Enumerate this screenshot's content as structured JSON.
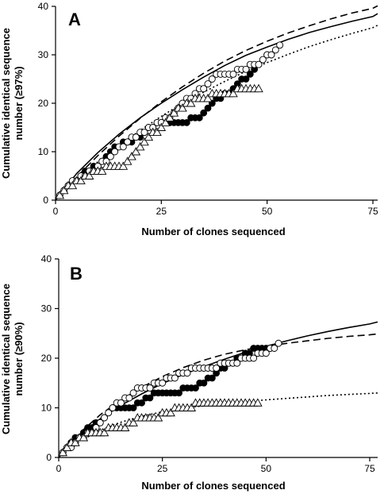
{
  "chart_data": [
    {
      "type": "scatter",
      "panel_label": "A",
      "xlabel": "Number of clones sequenced",
      "ylabel": [
        "Cumulative identical sequence",
        "number (≥97%)"
      ],
      "xlim": [
        0,
        75
      ],
      "ylim": [
        0,
        40
      ],
      "xticks": [
        "0",
        "25",
        "50",
        "75"
      ],
      "yticks": [
        "0",
        "10",
        "20",
        "30",
        "40"
      ],
      "grid": false,
      "legend": "none",
      "series": [
        {
          "marker": "filled-circle",
          "x": [
            1,
            2,
            3,
            4,
            5,
            6,
            7,
            8,
            9,
            10,
            11,
            12,
            13,
            14,
            15,
            16,
            17,
            18,
            19,
            20,
            21,
            22,
            23,
            24,
            25,
            26,
            27,
            28,
            29,
            30,
            31,
            32,
            33,
            34,
            35,
            36,
            37,
            38,
            39,
            40,
            41,
            42,
            43,
            44,
            45,
            46,
            47,
            48,
            49,
            50,
            51
          ],
          "y": [
            1,
            2,
            3,
            4,
            4,
            5,
            6,
            6,
            7,
            7,
            8,
            9,
            10,
            11,
            11,
            12,
            12,
            12,
            13,
            13,
            14,
            15,
            15,
            16,
            16,
            16,
            16,
            16,
            16,
            16,
            16,
            17,
            17,
            17,
            18,
            19,
            20,
            21,
            21,
            22,
            22,
            23,
            24,
            25,
            25,
            26,
            27,
            28,
            29,
            30,
            30
          ]
        },
        {
          "marker": "open-circle",
          "x": [
            1,
            2,
            3,
            4,
            5,
            6,
            7,
            8,
            9,
            10,
            11,
            12,
            13,
            14,
            15,
            16,
            17,
            18,
            19,
            20,
            21,
            22,
            23,
            24,
            25,
            26,
            27,
            28,
            29,
            30,
            31,
            32,
            33,
            34,
            35,
            36,
            37,
            38,
            39,
            40,
            41,
            42,
            43,
            44,
            45,
            46,
            47,
            48,
            49,
            50,
            51,
            52,
            53
          ],
          "y": [
            1,
            2,
            3,
            4,
            4,
            5,
            5,
            6,
            6,
            7,
            8,
            8,
            9,
            10,
            11,
            11,
            12,
            13,
            13,
            14,
            14,
            15,
            15,
            16,
            16,
            17,
            17,
            18,
            19,
            20,
            21,
            21,
            22,
            23,
            23,
            24,
            25,
            26,
            26,
            26,
            26,
            26,
            27,
            27,
            27,
            28,
            28,
            28,
            29,
            30,
            30,
            31,
            32
          ]
        },
        {
          "marker": "open-triangle",
          "x": [
            1,
            2,
            3,
            4,
            5,
            6,
            7,
            8,
            9,
            10,
            11,
            12,
            13,
            14,
            15,
            16,
            17,
            18,
            19,
            20,
            21,
            22,
            23,
            24,
            25,
            26,
            27,
            28,
            29,
            30,
            31,
            32,
            33,
            34,
            35,
            36,
            37,
            38,
            39,
            40,
            41,
            42,
            43,
            44,
            45,
            46,
            47,
            48
          ],
          "y": [
            1,
            2,
            3,
            3,
            4,
            4,
            5,
            5,
            6,
            6,
            6,
            7,
            7,
            7,
            7,
            7,
            8,
            9,
            10,
            11,
            12,
            13,
            14,
            14,
            15,
            16,
            17,
            18,
            19,
            19,
            20,
            20,
            21,
            21,
            21,
            21,
            22,
            22,
            22,
            22,
            22,
            22,
            23,
            23,
            23,
            23,
            23,
            23
          ]
        }
      ],
      "fit_curves": [
        {
          "style": "solid",
          "x": [
            0,
            5,
            10,
            15,
            20,
            25,
            30,
            35,
            40,
            45,
            50,
            55,
            60,
            65,
            70,
            75,
            78
          ],
          "y": [
            0,
            5.5,
            9.8,
            13.6,
            17,
            20,
            22.8,
            25.4,
            27.8,
            29.9,
            31.6,
            33.2,
            34.6,
            35.8,
            36.9,
            37.9,
            38.5
          ]
        },
        {
          "style": "dashed",
          "x": [
            0,
            5,
            10,
            15,
            20,
            25,
            30,
            35,
            40,
            45,
            50,
            55,
            60,
            65,
            70,
            75,
            78
          ],
          "y": [
            0,
            4.8,
            9.2,
            13.2,
            16.9,
            20.3,
            23.4,
            26.2,
            28.7,
            30.9,
            32.8,
            34.5,
            36,
            37.4,
            38.6,
            39.6,
            40.1
          ]
        },
        {
          "style": "dotted",
          "x": [
            0,
            5,
            10,
            15,
            20,
            25,
            30,
            35,
            40,
            45,
            50,
            55,
            60,
            65,
            70,
            75,
            78
          ],
          "y": [
            0,
            4.2,
            7.9,
            11.3,
            14.4,
            17.3,
            20,
            22.3,
            24.5,
            26.6,
            28.4,
            30.1,
            31.7,
            33.1,
            34.4,
            35.6,
            36.1
          ]
        }
      ]
    },
    {
      "type": "scatter",
      "panel_label": "B",
      "xlabel": "Number of clones sequenced",
      "ylabel": [
        "Cumulative identical sequence",
        "number (≥90%)"
      ],
      "xlim": [
        0,
        75
      ],
      "ylim": [
        0,
        40
      ],
      "xticks": [
        "0",
        "25",
        "50",
        "75"
      ],
      "yticks": [
        "0",
        "10",
        "20",
        "30",
        "40"
      ],
      "grid": false,
      "legend": "none",
      "series": [
        {
          "marker": "filled-circle",
          "x": [
            1,
            2,
            3,
            4,
            5,
            6,
            7,
            8,
            9,
            10,
            11,
            12,
            13,
            14,
            15,
            16,
            17,
            18,
            19,
            20,
            21,
            22,
            23,
            24,
            25,
            26,
            27,
            28,
            29,
            30,
            31,
            32,
            33,
            34,
            35,
            36,
            37,
            38,
            39,
            40,
            41,
            42,
            43,
            44,
            45,
            46,
            47,
            48,
            49,
            50,
            51
          ],
          "y": [
            1,
            2,
            3,
            4,
            4,
            5,
            6,
            6,
            7,
            7,
            8,
            9,
            10,
            10,
            10,
            10,
            10,
            10,
            11,
            11,
            12,
            12,
            13,
            13,
            13,
            13,
            13,
            13,
            13,
            14,
            14,
            14,
            14,
            15,
            15,
            16,
            16,
            17,
            18,
            18,
            19,
            19,
            20,
            20,
            21,
            21,
            22,
            22,
            22,
            22,
            22
          ]
        },
        {
          "marker": "open-circle",
          "x": [
            1,
            2,
            3,
            4,
            5,
            6,
            7,
            8,
            9,
            10,
            11,
            12,
            13,
            14,
            15,
            16,
            17,
            18,
            19,
            20,
            21,
            22,
            23,
            24,
            25,
            26,
            27,
            28,
            29,
            30,
            31,
            32,
            33,
            34,
            35,
            36,
            37,
            38,
            39,
            40,
            41,
            42,
            43,
            44,
            45,
            46,
            47,
            48,
            49,
            50,
            51,
            52,
            53
          ],
          "y": [
            1,
            2,
            2,
            3,
            4,
            4,
            5,
            5,
            6,
            7,
            8,
            9,
            10,
            11,
            11,
            12,
            12,
            13,
            14,
            14,
            14,
            14,
            15,
            15,
            15,
            16,
            16,
            16,
            17,
            17,
            17,
            18,
            18,
            18,
            18,
            18,
            18,
            18,
            19,
            19,
            19,
            19,
            19,
            20,
            20,
            20,
            20,
            21,
            21,
            21,
            22,
            22,
            23
          ]
        },
        {
          "marker": "open-triangle",
          "x": [
            1,
            2,
            3,
            4,
            5,
            6,
            7,
            8,
            9,
            10,
            11,
            12,
            13,
            14,
            15,
            16,
            17,
            18,
            19,
            20,
            21,
            22,
            23,
            24,
            25,
            26,
            27,
            28,
            29,
            30,
            31,
            32,
            33,
            34,
            35,
            36,
            37,
            38,
            39,
            40,
            41,
            42,
            43,
            44,
            45,
            46,
            47,
            48
          ],
          "y": [
            1,
            2,
            3,
            3,
            4,
            4,
            5,
            5,
            5,
            5,
            5,
            6,
            6,
            6,
            6,
            6,
            7,
            7,
            8,
            8,
            8,
            8,
            8,
            8,
            9,
            9,
            9,
            10,
            10,
            10,
            10,
            10,
            11,
            11,
            11,
            11,
            11,
            11,
            11,
            11,
            11,
            11,
            11,
            11,
            11,
            11,
            11,
            11
          ]
        }
      ],
      "fit_curves": [
        {
          "style": "solid",
          "x": [
            0,
            5,
            10,
            15,
            20,
            25,
            30,
            35,
            40,
            45,
            50,
            55,
            60,
            65,
            70,
            75,
            78
          ],
          "y": [
            0,
            4.5,
            7.8,
            10.5,
            12.8,
            14.9,
            16.7,
            18.3,
            19.8,
            21.2,
            22.4,
            23.5,
            24.5,
            25.4,
            26.2,
            26.9,
            27.3
          ]
        },
        {
          "style": "dashed",
          "x": [
            0,
            5,
            10,
            15,
            20,
            25,
            30,
            35,
            40,
            45,
            50,
            55,
            60,
            65,
            70,
            75,
            78
          ],
          "y": [
            0,
            4.9,
            8.6,
            11.6,
            14.1,
            16.3,
            18.1,
            19.6,
            20.8,
            21.7,
            22.4,
            23,
            23.5,
            24,
            24.4,
            24.7,
            24.9
          ]
        },
        {
          "style": "dotted",
          "x": [
            0,
            5,
            10,
            15,
            20,
            25,
            30,
            35,
            40,
            45,
            50,
            55,
            60,
            65,
            70,
            75,
            78
          ],
          "y": [
            0,
            3.2,
            5.5,
            7.1,
            8.3,
            9.2,
            9.9,
            10.4,
            10.9,
            11.3,
            11.6,
            11.9,
            12.2,
            12.5,
            12.7,
            12.9,
            13
          ]
        }
      ]
    }
  ]
}
